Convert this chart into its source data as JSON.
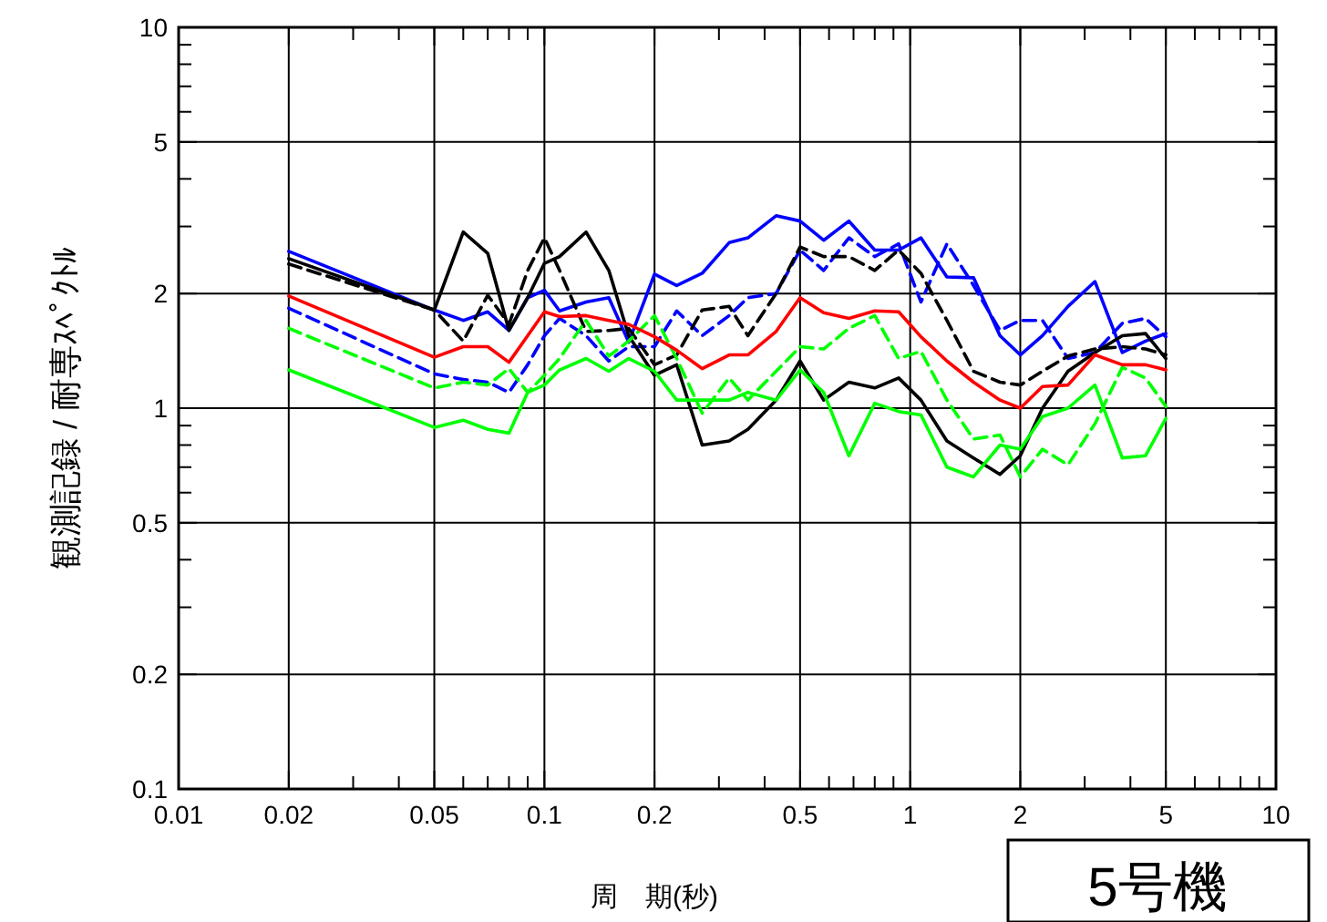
{
  "chart_data": {
    "type": "line",
    "xlabel": "周　期(秒)",
    "ylabel": "観測記録 / 耐専ｽﾍﾟｸﾄﾙ",
    "log": "xy",
    "grid": true,
    "marker": "none",
    "annotations": [
      "5号機"
    ],
    "xlim": [
      0.01,
      10
    ],
    "ylim": [
      0.1,
      10
    ],
    "xticks": [
      0.01,
      0.02,
      {
        "value": 0.03,
        "label": null
      },
      {
        "value": 0.04,
        "label": null
      },
      0.05,
      {
        "value": 0.06,
        "label": null
      },
      {
        "value": 0.07,
        "label": null
      },
      {
        "value": 0.08,
        "label": null
      },
      {
        "value": 0.09,
        "label": null
      },
      0.1,
      0.2,
      {
        "value": 0.3,
        "label": null
      },
      {
        "value": 0.4,
        "label": null
      },
      0.5,
      {
        "value": 0.6,
        "label": null
      },
      {
        "value": 0.7,
        "label": null
      },
      {
        "value": 0.8,
        "label": null
      },
      {
        "value": 0.9,
        "label": null
      },
      1,
      2,
      {
        "value": 3,
        "label": null
      },
      {
        "value": 4,
        "label": null
      },
      5,
      {
        "value": 6,
        "label": null
      },
      {
        "value": 7,
        "label": null
      },
      {
        "value": 8,
        "label": null
      },
      {
        "value": 9,
        "label": null
      },
      10
    ],
    "yticks": [
      0.1,
      0.2,
      {
        "value": 0.3,
        "label": null
      },
      {
        "value": 0.4,
        "label": null
      },
      0.5,
      {
        "value": 0.6,
        "label": null
      },
      {
        "value": 0.7,
        "label": null
      },
      {
        "value": 0.8,
        "label": null
      },
      {
        "value": 0.9,
        "label": null
      },
      1,
      2,
      {
        "value": 3,
        "label": null
      },
      {
        "value": 4,
        "label": null
      },
      5,
      {
        "value": 6,
        "label": null
      },
      {
        "value": 7,
        "label": null
      },
      {
        "value": 8,
        "label": null
      },
      {
        "value": 9,
        "label": null
      },
      10
    ],
    "x": [
      0.02,
      0.05,
      0.06,
      0.07,
      0.08,
      0.09,
      0.1,
      0.11,
      0.13,
      0.15,
      0.17,
      0.2,
      0.23,
      0.27,
      0.32,
      0.36,
      0.43,
      0.5,
      0.58,
      0.68,
      0.8,
      0.93,
      1.07,
      1.26,
      1.49,
      1.76,
      2.0,
      2.3,
      2.7,
      3.2,
      3.8,
      4.4,
      5.0
    ],
    "series": [
      {
        "color": "#0000ff",
        "line_style": "solid",
        "values": [
          2.58,
          1.81,
          1.7,
          1.79,
          1.6,
          1.95,
          2.04,
          1.8,
          1.9,
          1.95,
          1.49,
          2.25,
          2.1,
          2.26,
          2.72,
          2.8,
          3.2,
          3.1,
          2.76,
          3.1,
          2.6,
          2.6,
          2.8,
          2.21,
          2.2,
          1.55,
          1.38,
          1.55,
          1.85,
          2.15,
          1.4,
          1.5,
          1.57
        ]
      },
      {
        "color": "#0000ff",
        "line_style": "dashed",
        "values": [
          1.83,
          1.23,
          1.19,
          1.17,
          1.1,
          1.3,
          1.55,
          1.72,
          1.55,
          1.33,
          1.45,
          1.45,
          1.8,
          1.55,
          1.75,
          1.95,
          2.0,
          2.6,
          2.3,
          2.8,
          2.5,
          2.7,
          1.9,
          2.7,
          2.1,
          1.6,
          1.7,
          1.7,
          1.35,
          1.4,
          1.67,
          1.72,
          1.54
        ]
      },
      {
        "color": "#000000",
        "line_style": "solid",
        "values": [
          2.47,
          1.81,
          2.9,
          2.55,
          1.6,
          1.95,
          2.4,
          2.5,
          2.9,
          2.3,
          1.55,
          1.22,
          1.3,
          0.8,
          0.82,
          0.88,
          1.05,
          1.33,
          1.05,
          1.17,
          1.13,
          1.2,
          1.05,
          0.82,
          0.74,
          0.67,
          0.75,
          1.0,
          1.25,
          1.4,
          1.55,
          1.57,
          1.35
        ]
      },
      {
        "color": "#000000",
        "line_style": "dashed",
        "values": [
          2.39,
          1.81,
          1.5,
          1.98,
          1.66,
          2.3,
          2.8,
          2.3,
          1.59,
          1.6,
          1.62,
          1.3,
          1.38,
          1.81,
          1.85,
          1.55,
          2.0,
          2.65,
          2.5,
          2.5,
          2.3,
          2.6,
          2.26,
          1.7,
          1.25,
          1.17,
          1.15,
          1.25,
          1.37,
          1.43,
          1.45,
          1.43,
          1.38
        ]
      },
      {
        "color": "#00ff00",
        "line_style": "dashed",
        "values": [
          1.62,
          1.13,
          1.17,
          1.15,
          1.27,
          1.1,
          1.22,
          1.35,
          1.7,
          1.37,
          1.5,
          1.75,
          1.35,
          0.97,
          1.2,
          1.05,
          1.25,
          1.45,
          1.43,
          1.62,
          1.75,
          1.35,
          1.41,
          1.05,
          0.83,
          0.85,
          0.66,
          0.78,
          0.71,
          0.91,
          1.28,
          1.2,
          1.01
        ]
      },
      {
        "color": "#00ff00",
        "line_style": "solid",
        "values": [
          1.26,
          0.89,
          0.93,
          0.88,
          0.86,
          1.1,
          1.15,
          1.26,
          1.35,
          1.25,
          1.35,
          1.25,
          1.05,
          1.05,
          1.05,
          1.1,
          1.05,
          1.26,
          1.1,
          0.75,
          1.03,
          0.98,
          0.96,
          0.7,
          0.66,
          0.8,
          0.78,
          0.95,
          1.0,
          1.15,
          0.74,
          0.75,
          0.94
        ]
      },
      {
        "color": "#ff0000",
        "line_style": "solid",
        "values": [
          1.97,
          1.36,
          1.45,
          1.45,
          1.32,
          1.55,
          1.79,
          1.74,
          1.75,
          1.7,
          1.66,
          1.54,
          1.42,
          1.27,
          1.38,
          1.38,
          1.59,
          1.95,
          1.78,
          1.72,
          1.8,
          1.79,
          1.54,
          1.33,
          1.17,
          1.05,
          1.0,
          1.14,
          1.15,
          1.38,
          1.3,
          1.3,
          1.26
        ]
      }
    ]
  }
}
